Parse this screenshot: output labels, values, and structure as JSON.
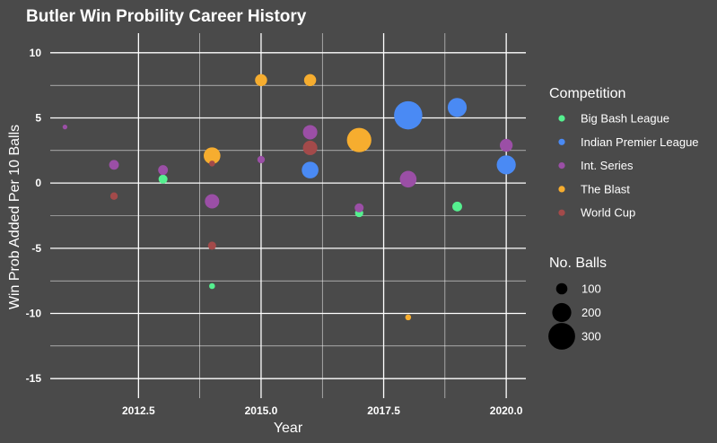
{
  "chart_data": {
    "type": "scatter",
    "title": "Butler Win Probility Career History",
    "xlabel": "Year",
    "ylabel": "Win Prob Added Per 10 Balls",
    "xlim": [
      2010.7,
      2020.4
    ],
    "ylim": [
      -16.5,
      11.5
    ],
    "x_ticks": [
      2012.5,
      2015.0,
      2017.5,
      2020.0
    ],
    "x_tick_labels": [
      "2012.5",
      "2015.0",
      "2017.5",
      "2020.0"
    ],
    "y_ticks": [
      -15,
      -10,
      -5,
      0,
      5,
      10
    ],
    "y_tick_labels": [
      "-15",
      "-10",
      "-5",
      "0",
      "5",
      "10"
    ],
    "legend_position": "right",
    "color_legend": {
      "title": "Competition",
      "entries": [
        {
          "name": "Big Bash League",
          "color": "#55f08f"
        },
        {
          "name": "Indian Premier League",
          "color": "#4a8af4"
        },
        {
          "name": "Int. Series",
          "color": "#9b4fa6"
        },
        {
          "name": "The Blast",
          "color": "#f6ad2f"
        },
        {
          "name": "World Cup",
          "color": "#a34a4a"
        }
      ]
    },
    "size_legend": {
      "title": "No. Balls",
      "entries": [
        {
          "label": "100",
          "value": 100
        },
        {
          "label": "200",
          "value": 200
        },
        {
          "label": "300",
          "value": 300
        }
      ]
    },
    "series": [
      {
        "name": "Big Bash League",
        "color": "#55f08f",
        "points": [
          {
            "x": 2013,
            "y": 0.3,
            "balls": 70
          },
          {
            "x": 2014,
            "y": -7.9,
            "balls": 30
          },
          {
            "x": 2017,
            "y": -2.3,
            "balls": 60
          },
          {
            "x": 2019,
            "y": -1.8,
            "balls": 80
          }
        ]
      },
      {
        "name": "Indian Premier League",
        "color": "#4a8af4",
        "points": [
          {
            "x": 2016,
            "y": 1.0,
            "balls": 170
          },
          {
            "x": 2018,
            "y": 5.2,
            "balls": 320
          },
          {
            "x": 2019,
            "y": 5.8,
            "balls": 200
          },
          {
            "x": 2020,
            "y": 1.4,
            "balls": 200
          }
        ]
      },
      {
        "name": "Int. Series",
        "color": "#9b4fa6",
        "points": [
          {
            "x": 2011,
            "y": 4.3,
            "balls": 15
          },
          {
            "x": 2012,
            "y": 1.4,
            "balls": 80
          },
          {
            "x": 2013,
            "y": 1.0,
            "balls": 80
          },
          {
            "x": 2014,
            "y": -1.4,
            "balls": 140
          },
          {
            "x": 2015,
            "y": 1.8,
            "balls": 50
          },
          {
            "x": 2016,
            "y": 3.9,
            "balls": 140
          },
          {
            "x": 2017,
            "y": -1.9,
            "balls": 70
          },
          {
            "x": 2018,
            "y": 0.3,
            "balls": 170
          },
          {
            "x": 2020,
            "y": 2.9,
            "balls": 120
          }
        ]
      },
      {
        "name": "The Blast",
        "color": "#f6ad2f",
        "points": [
          {
            "x": 2014,
            "y": 2.1,
            "balls": 170
          },
          {
            "x": 2015,
            "y": 7.9,
            "balls": 110
          },
          {
            "x": 2016,
            "y": 7.9,
            "balls": 110
          },
          {
            "x": 2017,
            "y": 3.3,
            "balls": 270
          },
          {
            "x": 2018,
            "y": -10.3,
            "balls": 30
          }
        ]
      },
      {
        "name": "World Cup",
        "color": "#a34a4a",
        "points": [
          {
            "x": 2012,
            "y": -1.0,
            "balls": 50
          },
          {
            "x": 2014,
            "y": 1.5,
            "balls": 30
          },
          {
            "x": 2014,
            "y": -4.8,
            "balls": 60
          },
          {
            "x": 2016,
            "y": 2.7,
            "balls": 140
          }
        ]
      }
    ]
  }
}
